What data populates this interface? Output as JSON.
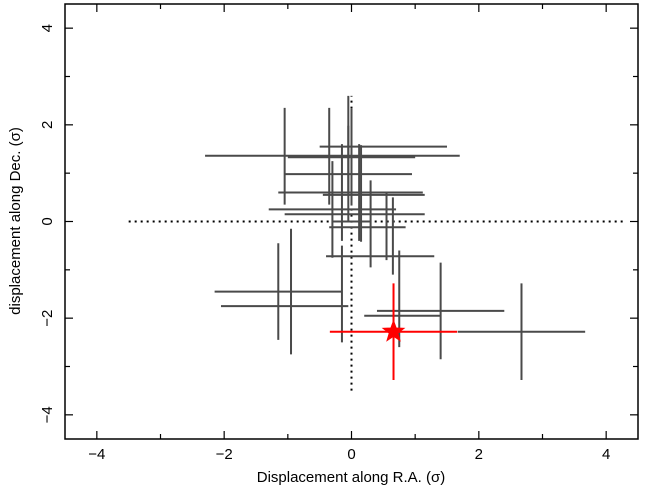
{
  "chart_data": {
    "type": "scatter",
    "title": "",
    "xlabel": "Displacement along R.A. (σ)",
    "ylabel": "displacement along Dec. (σ)",
    "xlim": [
      -4.5,
      4.5
    ],
    "ylim": [
      -4.5,
      4.5
    ],
    "x_ticks": [
      -4,
      -2,
      0,
      2,
      4
    ],
    "y_ticks": [
      -4,
      -2,
      0,
      2,
      4
    ],
    "x_tick_labels": [
      "−4",
      "−2",
      "0",
      "2",
      "4"
    ],
    "y_tick_labels": [
      "−4",
      "−2",
      "0",
      "2",
      "4"
    ],
    "grid": false,
    "reference_lines": {
      "vertical": {
        "x": 0,
        "y_range": [
          -3.5,
          2.6
        ],
        "style": "dotted"
      },
      "horizontal": {
        "y": 0,
        "x_range": [
          -3.5,
          4.3
        ],
        "style": "dotted"
      }
    },
    "series": [
      {
        "color": "#4a4a4a",
        "marker": "none",
        "points": [
          {
            "x": -0.3,
            "y": 1.36,
            "xerr": 2.0,
            "yerr": 0.0
          },
          {
            "x": 0.0,
            "y": 1.33,
            "xerr": 1.0,
            "yerr": 1.0
          },
          {
            "x": 0.5,
            "y": 1.55,
            "xerr": 1.0,
            "yerr": 0.0
          },
          {
            "x": 0.12,
            "y": 0.6,
            "xerr": 1.0,
            "yerr": 1.0
          },
          {
            "x": -0.15,
            "y": 0.6,
            "xerr": 1.0,
            "yerr": 1.0
          },
          {
            "x": -0.05,
            "y": 0.98,
            "xerr": 1.0,
            "yerr": 1.0
          },
          {
            "x": -0.3,
            "y": 0.25,
            "xerr": 1.0,
            "yerr": 1.0
          },
          {
            "x": 0.35,
            "y": 0.55,
            "xerr": 0.8,
            "yerr": 0.0
          },
          {
            "x": -1.05,
            "y": 1.35,
            "xerr": 0.0,
            "yerr": 1.0
          },
          {
            "x": -0.35,
            "y": 1.35,
            "xerr": 0.0,
            "yerr": 1.0
          },
          {
            "x": -0.05,
            "y": 1.6,
            "xerr": 0.0,
            "yerr": 1.0
          },
          {
            "x": 0.15,
            "y": 0.58,
            "xerr": 0.0,
            "yerr": 1.0
          },
          {
            "x": 0.05,
            "y": 0.15,
            "xerr": 1.1,
            "yerr": 0.0
          },
          {
            "x": 0.0,
            "y": 0.0,
            "xerr": 0.3,
            "yerr": 0.0
          },
          {
            "x": 0.3,
            "y": -0.05,
            "xerr": 0.0,
            "yerr": 0.9
          },
          {
            "x": 0.55,
            "y": -0.1,
            "xerr": 0.0,
            "yerr": 0.7
          },
          {
            "x": 0.65,
            "y": -0.3,
            "xerr": 0.0,
            "yerr": 0.8
          },
          {
            "x": 0.25,
            "y": -0.12,
            "xerr": 0.6,
            "yerr": 0.0
          },
          {
            "x": 0.45,
            "y": -0.72,
            "xerr": 0.85,
            "yerr": 0.0
          },
          {
            "x": -1.15,
            "y": -1.45,
            "xerr": 1.0,
            "yerr": 1.0
          },
          {
            "x": -0.95,
            "y": -1.45,
            "xerr": 0.0,
            "yerr": 1.3
          },
          {
            "x": -1.05,
            "y": -1.75,
            "xerr": 1.0,
            "yerr": 0.0
          },
          {
            "x": -0.15,
            "y": -1.5,
            "xerr": 0.0,
            "yerr": 1.0
          },
          {
            "x": 0.75,
            "y": -1.6,
            "xerr": 0.0,
            "yerr": 1.0
          },
          {
            "x": 1.4,
            "y": -1.85,
            "xerr": 1.0,
            "yerr": 1.0
          },
          {
            "x": 0.8,
            "y": -1.95,
            "xerr": 0.6,
            "yerr": 0.0
          },
          {
            "x": 2.67,
            "y": -2.28,
            "xerr": 1.0,
            "yerr": 1.0
          }
        ]
      },
      {
        "color": "#ff0000",
        "marker": "star",
        "points": [
          {
            "x": 0.66,
            "y": -2.28,
            "xerr": 1.0,
            "yerr": 1.0
          }
        ]
      }
    ]
  }
}
